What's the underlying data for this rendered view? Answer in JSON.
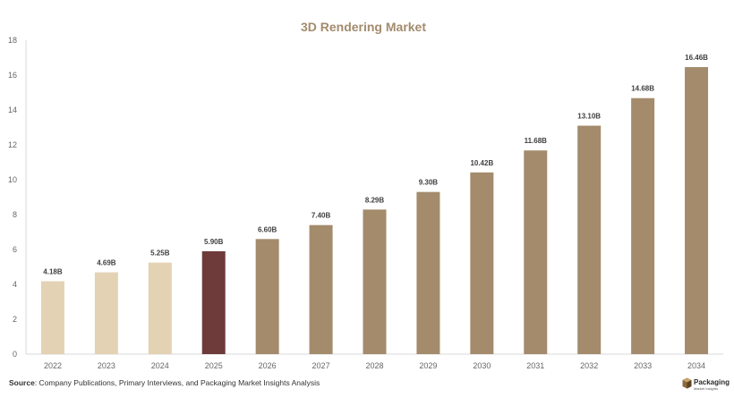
{
  "chart_data": {
    "type": "bar",
    "title": "3D Rendering Market",
    "xlabel": "",
    "ylabel": "",
    "categories": [
      "2022",
      "2023",
      "2024",
      "2025",
      "2026",
      "2027",
      "2028",
      "2029",
      "2030",
      "2031",
      "2032",
      "2033",
      "2034"
    ],
    "values": [
      4.18,
      4.69,
      5.25,
      5.9,
      6.6,
      7.4,
      8.29,
      9.3,
      10.42,
      11.68,
      13.1,
      14.68,
      16.46
    ],
    "data_labels": [
      "4.18B",
      "4.69B",
      "5.25B",
      "5.90B",
      "6.60B",
      "7.40B",
      "8.29B",
      "9.30B",
      "10.42B",
      "11.68B",
      "13.10B",
      "14.68B",
      "16.46B"
    ],
    "ylim": [
      0,
      18
    ],
    "yticks": [
      0,
      2,
      4,
      6,
      8,
      10,
      12,
      14,
      16,
      18
    ],
    "grid": false,
    "legend": "none",
    "colors": {
      "historical": "#e3d2b4",
      "current": "#6e3a3a",
      "forecast": "#a38b6c",
      "title": "#a38b6c"
    },
    "bar_color_groups": [
      "historical",
      "historical",
      "historical",
      "current",
      "forecast",
      "forecast",
      "forecast",
      "forecast",
      "forecast",
      "forecast",
      "forecast",
      "forecast",
      "forecast"
    ]
  },
  "source": {
    "label": "Source",
    "text": ": Company Publications, Primary Interviews, and Packaging Market Insights Analysis"
  },
  "logo": {
    "name": "Packaging",
    "subtitle": "Market Insights",
    "icon": "box-logo-icon"
  }
}
